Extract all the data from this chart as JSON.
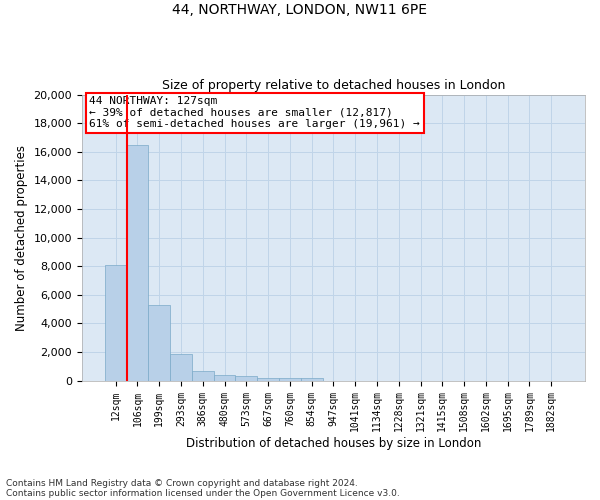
{
  "title_line1": "44, NORTHWAY, LONDON, NW11 6PE",
  "title_line2": "Size of property relative to detached houses in London",
  "xlabel": "Distribution of detached houses by size in London",
  "ylabel": "Number of detached properties",
  "categories": [
    "12sqm",
    "106sqm",
    "199sqm",
    "293sqm",
    "386sqm",
    "480sqm",
    "573sqm",
    "667sqm",
    "760sqm",
    "854sqm",
    "947sqm",
    "1041sqm",
    "1134sqm",
    "1228sqm",
    "1321sqm",
    "1415sqm",
    "1508sqm",
    "1602sqm",
    "1695sqm",
    "1789sqm",
    "1882sqm"
  ],
  "values": [
    8100,
    16500,
    5300,
    1850,
    700,
    370,
    290,
    210,
    175,
    150,
    0,
    0,
    0,
    0,
    0,
    0,
    0,
    0,
    0,
    0,
    0
  ],
  "bar_color": "#b8d0e8",
  "bar_edge_color": "#7aaac8",
  "red_line_bar_index": 1,
  "annotation_text_line1": "44 NORTHWAY: 127sqm",
  "annotation_text_line2": "← 39% of detached houses are smaller (12,817)",
  "annotation_text_line3": "61% of semi-detached houses are larger (19,961) →",
  "annotation_box_color": "white",
  "annotation_box_edge_color": "red",
  "ylim": [
    0,
    20000
  ],
  "yticks": [
    0,
    2000,
    4000,
    6000,
    8000,
    10000,
    12000,
    14000,
    16000,
    18000,
    20000
  ],
  "grid_color": "#c0d4e8",
  "background_color": "#dce8f4",
  "footer_line1": "Contains HM Land Registry data © Crown copyright and database right 2024.",
  "footer_line2": "Contains public sector information licensed under the Open Government Licence v3.0."
}
